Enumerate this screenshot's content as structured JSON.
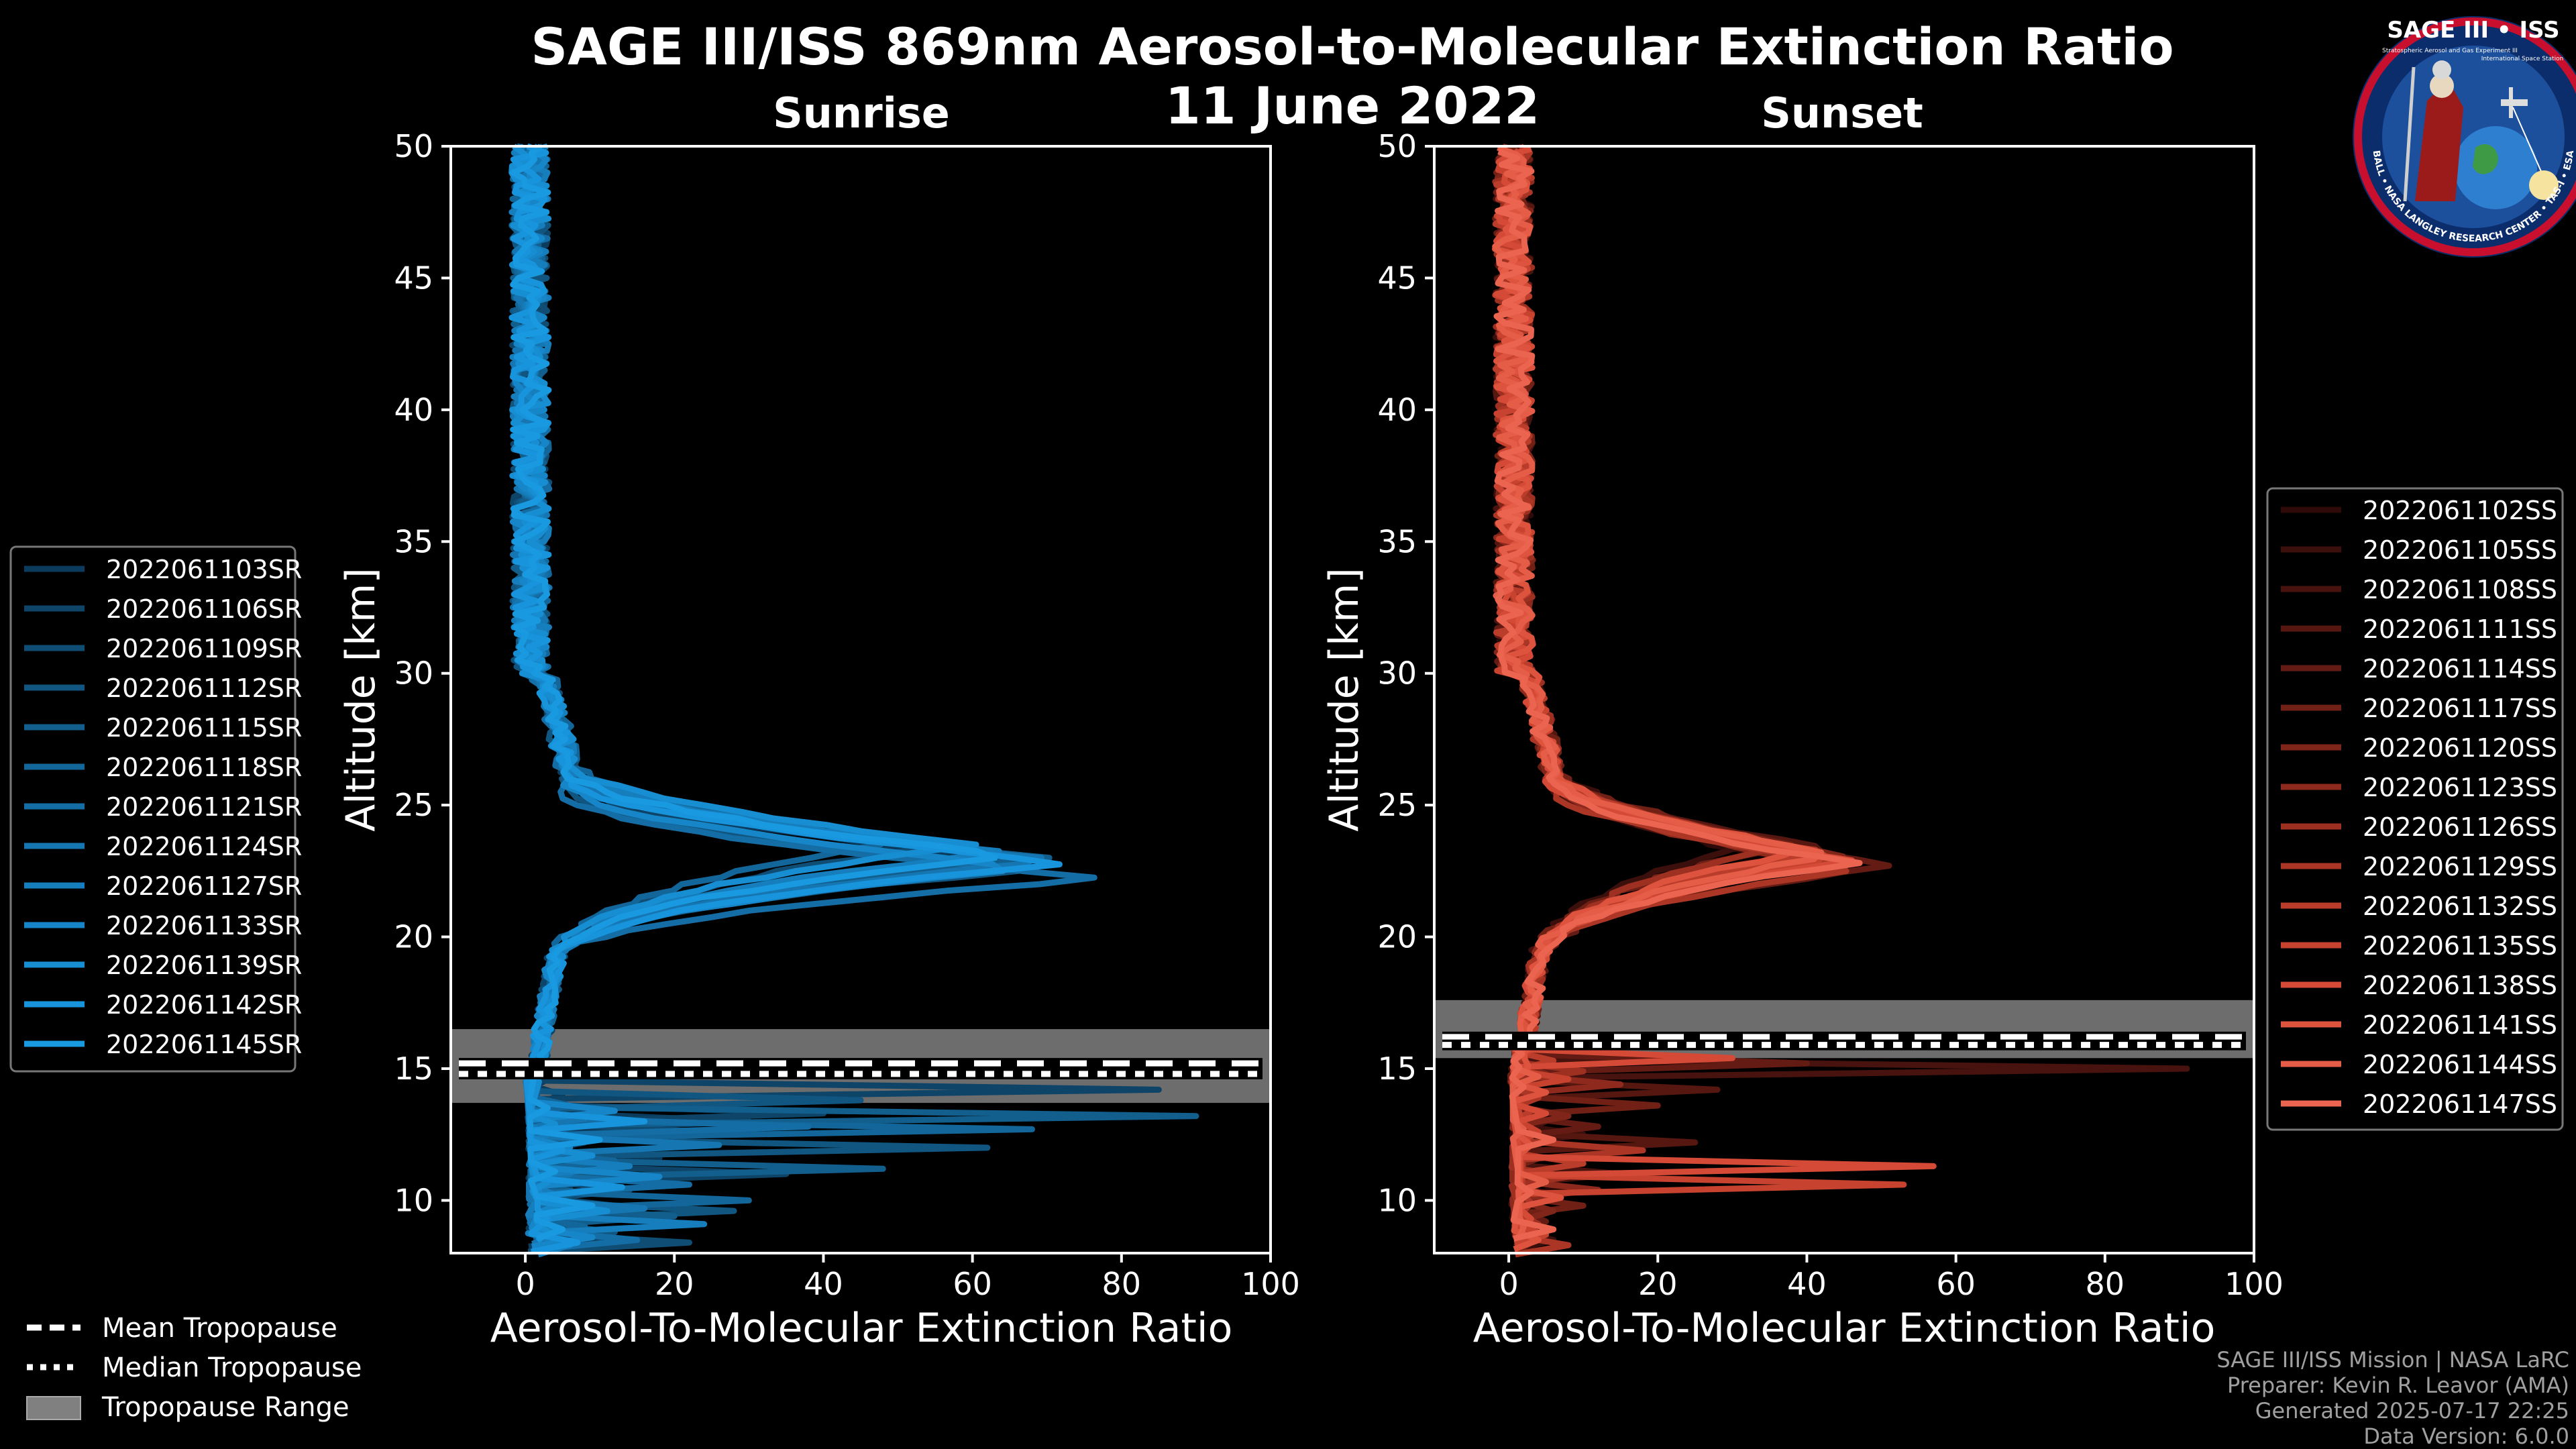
{
  "figure": {
    "title_line1": "SAGE III/ISS 869nm Aerosol-to-Molecular Extinction Ratio",
    "title_line2": "11 June 2022",
    "logo": {
      "name": "SAGE III • ISS",
      "subtitle": "Stratospheric Aerosol and Gas Experiment III",
      "ring_text": "BALL • NASA LANGLEY RESEARCH CENTER • TAS-I • ESA",
      "station": "International Space Station"
    },
    "tropopause_legend": {
      "mean": "Mean Tropopause",
      "median": "Median Tropopause",
      "range": "Tropopause Range"
    },
    "footer": {
      "line1": "SAGE III/ISS Mission | NASA LaRC",
      "line2": "Preparer: Kevin R. Leavor (AMA)",
      "line3": "Generated 2025-07-17 22:25",
      "line4": "Data Version: 6.0.0"
    }
  },
  "chart_data": [
    {
      "type": "line",
      "title": "Sunrise",
      "xlabel": "Aerosol-To-Molecular Extinction Ratio",
      "ylabel": "Altitude [km]",
      "xlim": [
        -10,
        100
      ],
      "ylim": [
        8,
        50
      ],
      "xticks": [
        0,
        20,
        40,
        60,
        80,
        100
      ],
      "yticks": [
        10,
        15,
        20,
        25,
        30,
        35,
        40,
        45,
        50
      ],
      "grid": false,
      "tropopause": {
        "mean_km": 15.2,
        "median_km": 14.8,
        "range_km": [
          13.7,
          16.5
        ]
      },
      "legend_position": "left",
      "series": [
        {
          "name": "2022061103SR",
          "color": "#0b3c5d",
          "peak_km": 23.0,
          "peak_value": 62,
          "tail": [
            [
              8.6,
              10
            ],
            [
              9.3,
              9
            ],
            [
              10.5,
              6
            ],
            [
              11.6,
              18
            ],
            [
              12.3,
              4
            ],
            [
              13.0,
              30
            ],
            [
              14.0,
              5
            ]
          ]
        },
        {
          "name": "2022061106SR",
          "color": "#0d4468",
          "peak_km": 22.8,
          "peak_value": 58,
          "tail": [
            [
              8.9,
              6
            ],
            [
              9.8,
              12
            ],
            [
              11.0,
              35
            ],
            [
              12.2,
              8
            ],
            [
              13.3,
              40
            ],
            [
              14.2,
              85
            ]
          ]
        },
        {
          "name": "2022061109SR",
          "color": "#0f4d75",
          "peak_km": 23.4,
          "peak_value": 55,
          "tail": [
            [
              8.4,
              22
            ],
            [
              9.2,
              4
            ],
            [
              10.4,
              14
            ],
            [
              11.4,
              3
            ],
            [
              12.6,
              24
            ],
            [
              13.5,
              6
            ]
          ]
        },
        {
          "name": "2022061112SR",
          "color": "#115681",
          "peak_km": 22.5,
          "peak_value": 66,
          "tail": [
            [
              8.8,
              12
            ],
            [
              9.6,
              28
            ],
            [
              10.8,
              5
            ],
            [
              12.0,
              62
            ],
            [
              12.9,
              10
            ],
            [
              13.8,
              45
            ]
          ]
        },
        {
          "name": "2022061115SR",
          "color": "#125e8d",
          "peak_km": 23.0,
          "peak_value": 70,
          "tail": [
            [
              8.3,
              3
            ],
            [
              9.4,
              20
            ],
            [
              10.3,
              7
            ],
            [
              11.2,
              48
            ],
            [
              12.4,
              8
            ],
            [
              13.2,
              90
            ]
          ]
        },
        {
          "name": "2022061118SR",
          "color": "#136699",
          "peak_km": 23.6,
          "peak_value": 50,
          "tail": [
            [
              9.0,
              8
            ],
            [
              10.0,
              30
            ],
            [
              11.5,
              12
            ],
            [
              12.7,
              68
            ],
            [
              13.6,
              6
            ]
          ]
        },
        {
          "name": "2022061121SR",
          "color": "#146ea5",
          "peak_km": 22.2,
          "peak_value": 79,
          "tail": [
            [
              8.5,
              15
            ],
            [
              9.5,
              5
            ],
            [
              10.6,
              22
            ],
            [
              11.8,
              4
            ],
            [
              12.8,
              38
            ]
          ]
        },
        {
          "name": "2022061124SR",
          "color": "#1576b1",
          "peak_km": 22.9,
          "peak_value": 72,
          "tail": [
            [
              8.7,
              4
            ],
            [
              9.7,
              16
            ],
            [
              11.0,
              6
            ],
            [
              12.1,
              26
            ],
            [
              13.1,
              8
            ]
          ]
        },
        {
          "name": "2022061127SR",
          "color": "#167ebd",
          "peak_km": 23.2,
          "peak_value": 64,
          "tail": [
            [
              8.3,
              6
            ],
            [
              9.1,
              24
            ],
            [
              10.2,
              4
            ],
            [
              11.3,
              14
            ],
            [
              12.5,
              3
            ]
          ]
        },
        {
          "name": "2022061133SR",
          "color": "#1786c8",
          "peak_km": 22.6,
          "peak_value": 68,
          "tail": [
            [
              8.6,
              9
            ],
            [
              9.9,
              5
            ],
            [
              10.9,
              18
            ],
            [
              12.0,
              6
            ],
            [
              13.4,
              12
            ]
          ]
        },
        {
          "name": "2022061139SR",
          "color": "#178dd2",
          "peak_km": 23.5,
          "peak_value": 60,
          "tail": [
            [
              8.8,
              3
            ],
            [
              9.6,
              11
            ],
            [
              10.7,
              3
            ],
            [
              11.7,
              9
            ],
            [
              12.9,
              4
            ]
          ]
        },
        {
          "name": "2022061142SR",
          "color": "#1894dc",
          "peak_km": 22.8,
          "peak_value": 74,
          "tail": [
            [
              8.4,
              7
            ],
            [
              9.3,
              3
            ],
            [
              10.5,
              13
            ],
            [
              11.9,
              5
            ],
            [
              13.0,
              16
            ]
          ]
        },
        {
          "name": "2022061145SR",
          "color": "#1899e0",
          "peak_km": 23.1,
          "peak_value": 66,
          "tail": [
            [
              8.9,
              5
            ],
            [
              9.8,
              9
            ],
            [
              11.1,
              4
            ],
            [
              12.3,
              10
            ],
            [
              13.5,
              3
            ]
          ]
        }
      ]
    },
    {
      "type": "line",
      "title": "Sunset",
      "xlabel": "Aerosol-To-Molecular Extinction Ratio",
      "ylabel": "Altitude [km]",
      "xlim": [
        -10,
        100
      ],
      "ylim": [
        8,
        50
      ],
      "xticks": [
        0,
        20,
        40,
        60,
        80,
        100
      ],
      "yticks": [
        10,
        15,
        20,
        25,
        30,
        35,
        40,
        45,
        50
      ],
      "grid": false,
      "tropopause": {
        "mean_km": 16.2,
        "median_km": 15.9,
        "range_km": [
          15.4,
          17.6
        ]
      },
      "legend_position": "right",
      "series": [
        {
          "name": "2022061102SS",
          "color": "#2e0b08",
          "peak_km": 23.0,
          "peak_value": 36,
          "tail": [
            [
              9.0,
              3
            ],
            [
              10.5,
              8
            ],
            [
              12.0,
              4
            ],
            [
              14.5,
              2
            ]
          ]
        },
        {
          "name": "2022061105SS",
          "color": "#3b0f0b",
          "peak_km": 23.6,
          "peak_value": 34,
          "tail": [
            [
              8.5,
              6
            ],
            [
              10.0,
              2
            ],
            [
              12.5,
              10
            ],
            [
              14.0,
              3
            ]
          ]
        },
        {
          "name": "2022061108SS",
          "color": "#48130e",
          "peak_km": 22.9,
          "peak_value": 40,
          "tail": [
            [
              9.5,
              4
            ],
            [
              11.0,
              15
            ],
            [
              13.0,
              5
            ],
            [
              15.0,
              91
            ]
          ]
        },
        {
          "name": "2022061111SS",
          "color": "#561710",
          "peak_km": 23.3,
          "peak_value": 44,
          "tail": [
            [
              8.8,
              2
            ],
            [
              10.2,
              6
            ],
            [
              12.2,
              25
            ],
            [
              14.2,
              28
            ]
          ]
        },
        {
          "name": "2022061114SS",
          "color": "#631b13",
          "peak_km": 22.7,
          "peak_value": 52,
          "tail": [
            [
              9.2,
              5
            ],
            [
              10.8,
              3
            ],
            [
              12.8,
              12
            ],
            [
              15.2,
              40
            ]
          ]
        },
        {
          "name": "2022061117SS",
          "color": "#712016",
          "peak_km": 23.5,
          "peak_value": 38,
          "tail": [
            [
              8.4,
              3
            ],
            [
              9.8,
              10
            ],
            [
              11.6,
              4
            ],
            [
              13.6,
              20
            ]
          ]
        },
        {
          "name": "2022061120SS",
          "color": "#7f2519",
          "peak_km": 23.1,
          "peak_value": 46,
          "tail": [
            [
              9.6,
              6
            ],
            [
              11.2,
              2
            ],
            [
              13.2,
              8
            ],
            [
              14.8,
              5
            ]
          ]
        },
        {
          "name": "2022061123SS",
          "color": "#8e2a1d",
          "peak_km": 22.8,
          "peak_value": 42,
          "tail": [
            [
              8.6,
              2
            ],
            [
              10.4,
              12
            ],
            [
              12.4,
              3
            ],
            [
              14.4,
              15
            ]
          ]
        },
        {
          "name": "2022061126SS",
          "color": "#9d3021",
          "peak_km": 23.4,
          "peak_value": 37,
          "tail": [
            [
              9.1,
              4
            ],
            [
              10.9,
              8
            ],
            [
              12.9,
              2
            ],
            [
              14.9,
              10
            ]
          ]
        },
        {
          "name": "2022061129SS",
          "color": "#ab3625",
          "peak_km": 22.6,
          "peak_value": 48,
          "tail": [
            [
              8.3,
              8
            ],
            [
              9.9,
              3
            ],
            [
              11.9,
              18
            ],
            [
              13.9,
              4
            ]
          ]
        },
        {
          "name": "2022061132SS",
          "color": "#ba3c2a",
          "peak_km": 23.2,
          "peak_value": 43,
          "tail": [
            [
              9.4,
              2
            ],
            [
              11.4,
              10
            ],
            [
              13.4,
              3
            ],
            [
              15.3,
              6
            ]
          ]
        },
        {
          "name": "2022061135SS",
          "color": "#c8432f",
          "peak_km": 23.0,
          "peak_value": 45,
          "tail": [
            [
              8.7,
              5
            ],
            [
              10.6,
              53
            ],
            [
              12.6,
              4
            ],
            [
              14.6,
              8
            ]
          ]
        },
        {
          "name": "2022061138SS",
          "color": "#d44a36",
          "peak_km": 22.9,
          "peak_value": 47,
          "tail": [
            [
              9.3,
              3
            ],
            [
              11.3,
              57
            ],
            [
              13.3,
              5
            ],
            [
              15.4,
              30
            ]
          ]
        },
        {
          "name": "2022061141SS",
          "color": "#de533e",
          "peak_km": 23.3,
          "peak_value": 41,
          "tail": [
            [
              8.5,
              4
            ],
            [
              10.1,
              7
            ],
            [
              12.1,
              3
            ],
            [
              14.1,
              5
            ]
          ]
        },
        {
          "name": "2022061144SS",
          "color": "#e55c47",
          "peak_km": 23.1,
          "peak_value": 44,
          "tail": [
            [
              9.0,
              2
            ],
            [
              10.7,
              5
            ],
            [
              12.7,
              2
            ],
            [
              14.7,
              4
            ]
          ]
        },
        {
          "name": "2022061147SS",
          "color": "#ea6450",
          "peak_km": 22.8,
          "peak_value": 46,
          "tail": [
            [
              8.9,
              6
            ],
            [
              10.3,
              3
            ],
            [
              12.3,
              6
            ],
            [
              14.3,
              2
            ]
          ]
        }
      ]
    }
  ]
}
